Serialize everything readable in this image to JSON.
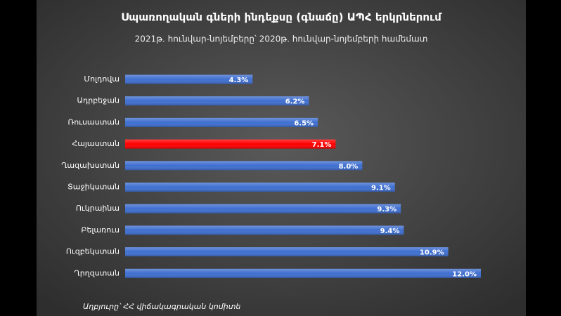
{
  "chart_data": {
    "type": "bar",
    "orientation": "horizontal",
    "title": "Սպառողական գների ինդեքսը (գնաճը) ԱՊՀ երկրներում",
    "subtitle": "2021թ. հունվար-նոյեմբերը՝ 2020թ. հունվար-նոյեմբերի համեմատ",
    "categories": [
      "Մոլդովա",
      "Ադրբեջան",
      "Ռուսաստան",
      "Հայաստան",
      "Ղազախստան",
      "Տաջիկստան",
      "Ուկրաինա",
      "Բելառուս",
      "Ուզբեկստան",
      "Ղրղզստան"
    ],
    "values": [
      4.3,
      6.2,
      6.5,
      7.1,
      8.0,
      9.1,
      9.3,
      9.4,
      10.9,
      12.0
    ],
    "value_labels": [
      "4.3%",
      "6.2%",
      "6.5%",
      "7.1%",
      "8.0%",
      "9.1%",
      "9.3%",
      "9.4%",
      "10.9%",
      "12.0%"
    ],
    "colors": [
      "#3f6fd0",
      "#3f6fd0",
      "#3f6fd0",
      "#ff0000",
      "#3f6fd0",
      "#3f6fd0",
      "#3f6fd0",
      "#3f6fd0",
      "#3f6fd0",
      "#3f6fd0"
    ],
    "source": "Աղբյուրը՝ ՀՀ վիճակագրական կոմիտե"
  }
}
